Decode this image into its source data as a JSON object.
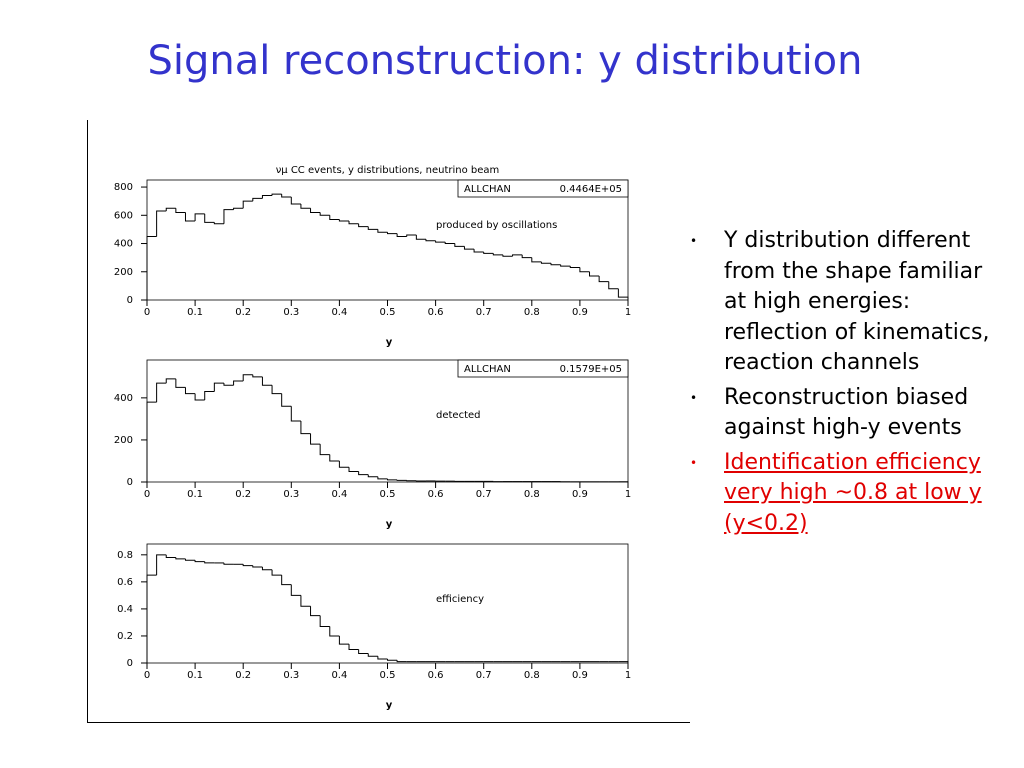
{
  "slide": {
    "title": "Signal reconstruction: y distribution",
    "bullets": [
      "Y distribution different from the shape familiar at high energies: reflection of kinematics, reaction channels",
      "Reconstruction biased against high-y events",
      "Identification efficiency very high ~0.8  at low y (y<0.2)"
    ]
  },
  "chart_data": [
    {
      "type": "histogram",
      "title": "νμ CC events, y distributions, neutrino beam",
      "xlabel": "y",
      "annotation": "produced by oscillations",
      "stats_label": "ALLCHAN",
      "stats_value": "0.4464E+05",
      "bins": [
        0,
        0.02,
        0.04,
        0.06,
        0.08,
        0.1,
        0.12,
        0.14,
        0.16,
        0.18,
        0.2,
        0.22,
        0.24,
        0.26,
        0.28,
        0.3,
        0.32,
        0.34,
        0.36,
        0.38,
        0.4,
        0.42,
        0.44,
        0.46,
        0.48,
        0.5,
        0.52,
        0.54,
        0.56,
        0.58,
        0.6,
        0.62,
        0.64,
        0.66,
        0.68,
        0.7,
        0.72,
        0.74,
        0.76,
        0.78,
        0.8,
        0.82,
        0.84,
        0.86,
        0.88,
        0.9,
        0.92,
        0.94,
        0.96,
        0.98,
        1
      ],
      "values": [
        450,
        630,
        650,
        620,
        560,
        610,
        550,
        540,
        640,
        650,
        700,
        720,
        740,
        750,
        730,
        680,
        650,
        620,
        600,
        570,
        560,
        540,
        520,
        500,
        480,
        470,
        450,
        460,
        430,
        420,
        410,
        400,
        380,
        360,
        340,
        330,
        320,
        310,
        320,
        300,
        270,
        260,
        250,
        240,
        230,
        200,
        170,
        130,
        80,
        20
      ],
      "color": "#000000",
      "xlim": [
        0,
        1
      ],
      "xticks": [
        0,
        0.1,
        0.2,
        0.3,
        0.4,
        0.5,
        0.6,
        0.7,
        0.8,
        0.9,
        1
      ],
      "ylim": [
        0,
        850
      ],
      "yticks": [
        0,
        200,
        400,
        600,
        800
      ]
    },
    {
      "type": "histogram",
      "xlabel": "y",
      "annotation": "detected",
      "stats_label": "ALLCHAN",
      "stats_value": "0.1579E+05",
      "bins": [
        0,
        0.02,
        0.04,
        0.06,
        0.08,
        0.1,
        0.12,
        0.14,
        0.16,
        0.18,
        0.2,
        0.22,
        0.24,
        0.26,
        0.28,
        0.3,
        0.32,
        0.34,
        0.36,
        0.38,
        0.4,
        0.42,
        0.44,
        0.46,
        0.48,
        0.5,
        0.52,
        0.54,
        0.56,
        0.58,
        0.6,
        0.62,
        0.64,
        0.66,
        0.68,
        0.7,
        0.72,
        0.74,
        0.76,
        0.78,
        0.8,
        0.82,
        0.84,
        0.86,
        0.88,
        0.9,
        0.92,
        0.94,
        0.96,
        0.98,
        1
      ],
      "values": [
        380,
        470,
        490,
        450,
        420,
        390,
        430,
        470,
        460,
        480,
        510,
        500,
        460,
        420,
        360,
        290,
        230,
        180,
        130,
        100,
        70,
        50,
        35,
        25,
        15,
        10,
        8,
        6,
        5,
        5,
        4,
        4,
        3,
        3,
        3,
        3,
        2,
        2,
        2,
        2,
        2,
        2,
        2,
        1,
        1,
        1,
        1,
        1,
        1,
        1
      ],
      "color": "#000000",
      "xlim": [
        0,
        1
      ],
      "xticks": [
        0,
        0.1,
        0.2,
        0.3,
        0.4,
        0.5,
        0.6,
        0.7,
        0.8,
        0.9,
        1
      ],
      "ylim": [
        0,
        580
      ],
      "yticks": [
        0,
        200,
        400
      ]
    },
    {
      "type": "histogram",
      "xlabel": "y",
      "annotation": "efficiency",
      "bins": [
        0,
        0.02,
        0.04,
        0.06,
        0.08,
        0.1,
        0.12,
        0.14,
        0.16,
        0.18,
        0.2,
        0.22,
        0.24,
        0.26,
        0.28,
        0.3,
        0.32,
        0.34,
        0.36,
        0.38,
        0.4,
        0.42,
        0.44,
        0.46,
        0.48,
        0.5,
        0.52,
        0.54,
        0.56,
        0.58,
        0.6,
        0.62,
        0.64,
        0.66,
        0.68,
        0.7,
        0.72,
        0.74,
        0.76,
        0.78,
        0.8,
        0.82,
        0.84,
        0.86,
        0.88,
        0.9,
        0.92,
        0.94,
        0.96,
        0.98,
        1
      ],
      "values": [
        0.65,
        0.8,
        0.78,
        0.77,
        0.76,
        0.75,
        0.74,
        0.74,
        0.73,
        0.73,
        0.72,
        0.71,
        0.69,
        0.65,
        0.58,
        0.5,
        0.42,
        0.35,
        0.27,
        0.2,
        0.14,
        0.1,
        0.07,
        0.05,
        0.03,
        0.02,
        0.01,
        0.01,
        0.01,
        0.01,
        0.01,
        0.01,
        0.01,
        0.01,
        0.01,
        0.01,
        0.01,
        0.01,
        0.01,
        0.01,
        0.01,
        0.01,
        0.01,
        0.01,
        0.01,
        0.01,
        0.01,
        0.01,
        0.01,
        0.01
      ],
      "color": "#000000",
      "xlim": [
        0,
        1
      ],
      "xticks": [
        0,
        0.1,
        0.2,
        0.3,
        0.4,
        0.5,
        0.6,
        0.7,
        0.8,
        0.9,
        1
      ],
      "ylim": [
        0,
        0.88
      ],
      "yticks": [
        0,
        0.2,
        0.4,
        0.6,
        0.8
      ]
    }
  ]
}
